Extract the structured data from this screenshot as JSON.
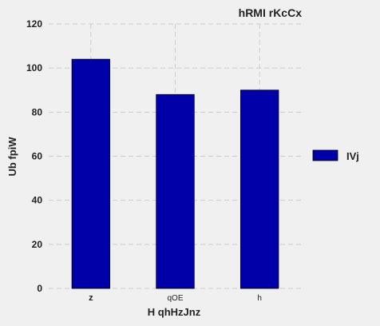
{
  "chart_data": {
    "type": "bar",
    "title": "hRMI rKcCx",
    "xlabel": "H qhHzJnz",
    "ylabel": "Ub fpiW",
    "categories": [
      "z",
      "qOE",
      "h"
    ],
    "series": [
      {
        "name": "IVj",
        "values": [
          104,
          88,
          90
        ]
      }
    ],
    "ylim": [
      0,
      120
    ],
    "yticks": [
      0,
      20,
      40,
      60,
      80,
      100,
      120
    ],
    "grid": true,
    "legend": "right",
    "colors": {
      "bar": "#0000a8",
      "grid": "#cbcbcb",
      "background": "#f0f0f0"
    }
  }
}
